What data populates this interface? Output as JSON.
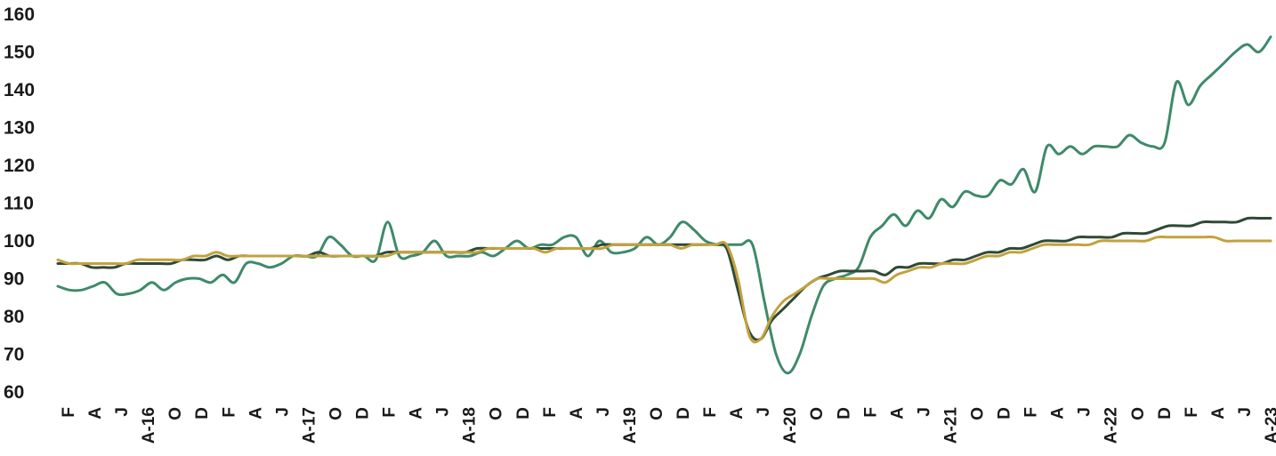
{
  "chart_data": {
    "type": "line",
    "title": "",
    "xlabel": "",
    "ylabel": "",
    "ylim": [
      60,
      160
    ],
    "yticks": [
      60,
      70,
      80,
      90,
      100,
      110,
      120,
      130,
      140,
      150,
      160
    ],
    "grid": false,
    "legend": "none",
    "x_ticks": [
      "F",
      "A",
      "J",
      "A-16",
      "O",
      "D",
      "F",
      "A",
      "J",
      "A-17",
      "O",
      "D",
      "F",
      "A",
      "J",
      "A-18",
      "O",
      "D",
      "F",
      "A",
      "J",
      "A-19",
      "O",
      "D",
      "F",
      "A",
      "J",
      "A-20",
      "O",
      "D",
      "F",
      "A",
      "J",
      "A-21",
      "O",
      "D",
      "F",
      "A",
      "J",
      "A-22",
      "O",
      "D",
      "F",
      "A",
      "J",
      "A-23"
    ],
    "series": [
      {
        "color": "#3e8a6a",
        "values": [
          88,
          87,
          87,
          88,
          89,
          86,
          86,
          87,
          89,
          87,
          89,
          90,
          90,
          89,
          91,
          89,
          94,
          94,
          93,
          94,
          96,
          96,
          96,
          101,
          99,
          96,
          96,
          95,
          105,
          96,
          96,
          97,
          100,
          96,
          96,
          96,
          97,
          96,
          98,
          100,
          98,
          99,
          99,
          101,
          101,
          96,
          100,
          97,
          97,
          98,
          101,
          99,
          101,
          105,
          103,
          100,
          99,
          99,
          99,
          99,
          84,
          70,
          65,
          70,
          80,
          88,
          90,
          91,
          93,
          101,
          104,
          107,
          104,
          108,
          106,
          111,
          109,
          113,
          112,
          112,
          116,
          115,
          119,
          113,
          125,
          123,
          125,
          123,
          125,
          125,
          125,
          128,
          126,
          125,
          126,
          142,
          136,
          141,
          144,
          147,
          150,
          152,
          150,
          154
        ]
      },
      {
        "color": "#2f4a35",
        "values": [
          94,
          94,
          94,
          93,
          93,
          93,
          94,
          94,
          94,
          94,
          94,
          95,
          95,
          95,
          96,
          95,
          96,
          96,
          96,
          96,
          96,
          96,
          96,
          97,
          96,
          96,
          96,
          96,
          96,
          97,
          97,
          97,
          97,
          97,
          97,
          97,
          97,
          98,
          98,
          98,
          98,
          98,
          98,
          98,
          98,
          98,
          98,
          98,
          99,
          99,
          99,
          99,
          99,
          99,
          99,
          99,
          99,
          99,
          99,
          98,
          87,
          76,
          74,
          79,
          82,
          85,
          88,
          90,
          91,
          92,
          92,
          92,
          92,
          91,
          93,
          93,
          94,
          94,
          94,
          95,
          95,
          96,
          97,
          97,
          98,
          98,
          99,
          100,
          100,
          100,
          101,
          101,
          101,
          101,
          102,
          102,
          102,
          103,
          104,
          104,
          104,
          105,
          105,
          105,
          105,
          106,
          106,
          106
        ]
      },
      {
        "color": "#c2a23f",
        "values": [
          95,
          94,
          94,
          94,
          94,
          94,
          94,
          95,
          95,
          95,
          95,
          95,
          96,
          96,
          97,
          96,
          96,
          96,
          96,
          96,
          96,
          96,
          96,
          96,
          96,
          96,
          96,
          96,
          96,
          96,
          97,
          97,
          97,
          97,
          97,
          97,
          97,
          97,
          98,
          98,
          98,
          98,
          98,
          97,
          98,
          98,
          98,
          98,
          98,
          99,
          99,
          99,
          99,
          99,
          99,
          98,
          99,
          99,
          99,
          99,
          90,
          75,
          74,
          80,
          84,
          86,
          88,
          90,
          90,
          90,
          90,
          90,
          90,
          89,
          91,
          92,
          93,
          93,
          94,
          94,
          94,
          95,
          96,
          96,
          97,
          97,
          98,
          99,
          99,
          99,
          99,
          99,
          100,
          100,
          100,
          100,
          100,
          101,
          101,
          101,
          101,
          101,
          101,
          100,
          100,
          100,
          100,
          100
        ]
      }
    ]
  }
}
